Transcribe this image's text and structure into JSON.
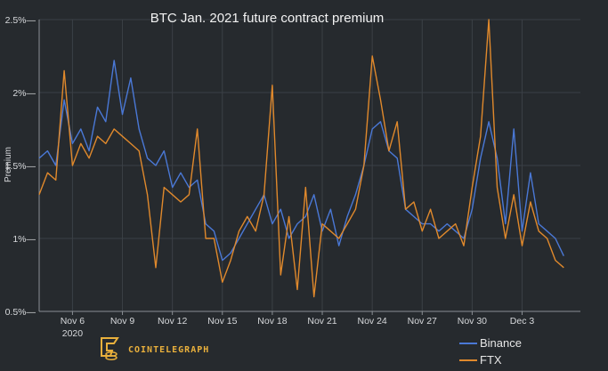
{
  "chart_data": {
    "type": "line",
    "title": "BTC Jan. 2021 future contract premium",
    "xlabel": "",
    "ylabel": "Premium",
    "x_range": [
      "2020-11-04",
      "2020-12-06"
    ],
    "ylim": [
      0.5,
      2.5
    ],
    "y_ticks": [
      0.5,
      1,
      1.5,
      2,
      2.5
    ],
    "y_tick_labels": [
      "0.5%",
      "1%",
      "1.5%",
      "2%",
      "2.5%"
    ],
    "x_ticks": [
      "2020-11-06",
      "2020-11-09",
      "2020-11-12",
      "2020-11-15",
      "2020-11-18",
      "2020-11-21",
      "2020-11-24",
      "2020-11-27",
      "2020-11-30",
      "2020-12-03"
    ],
    "x_tick_labels": [
      "Nov 6",
      "Nov 9",
      "Nov 12",
      "Nov 15",
      "Nov 18",
      "Nov 21",
      "Nov 24",
      "Nov 27",
      "Nov 30",
      "Dec 3"
    ],
    "x_year_label": "2020",
    "grid": true,
    "legend_position": "bottom-right",
    "series": [
      {
        "name": "Binance",
        "color": "#4a78d6",
        "points": [
          [
            "2020-11-04",
            1.55
          ],
          [
            "2020-11-04T12",
            1.6
          ],
          [
            "2020-11-05",
            1.5
          ],
          [
            "2020-11-05T12",
            1.95
          ],
          [
            "2020-11-06",
            1.65
          ],
          [
            "2020-11-06T12",
            1.75
          ],
          [
            "2020-11-07",
            1.6
          ],
          [
            "2020-11-07T12",
            1.9
          ],
          [
            "2020-11-08",
            1.8
          ],
          [
            "2020-11-08T12",
            2.22
          ],
          [
            "2020-11-09",
            1.85
          ],
          [
            "2020-11-09T12",
            2.1
          ],
          [
            "2020-11-10",
            1.75
          ],
          [
            "2020-11-10T12",
            1.55
          ],
          [
            "2020-11-11",
            1.5
          ],
          [
            "2020-11-11T12",
            1.6
          ],
          [
            "2020-11-12",
            1.35
          ],
          [
            "2020-11-12T12",
            1.45
          ],
          [
            "2020-11-13",
            1.35
          ],
          [
            "2020-11-13T12",
            1.4
          ],
          [
            "2020-11-14",
            1.1
          ],
          [
            "2020-11-14T12",
            1.05
          ],
          [
            "2020-11-15",
            0.85
          ],
          [
            "2020-11-15T12",
            0.9
          ],
          [
            "2020-11-16",
            1.0
          ],
          [
            "2020-11-16T12",
            1.1
          ],
          [
            "2020-11-17",
            1.2
          ],
          [
            "2020-11-17T12",
            1.3
          ],
          [
            "2020-11-18",
            1.1
          ],
          [
            "2020-11-18T12",
            1.2
          ],
          [
            "2020-11-19",
            1.0
          ],
          [
            "2020-11-19T12",
            1.1
          ],
          [
            "2020-11-20",
            1.15
          ],
          [
            "2020-11-20T12",
            1.3
          ],
          [
            "2020-11-21",
            1.05
          ],
          [
            "2020-11-21T12",
            1.2
          ],
          [
            "2020-11-22",
            0.95
          ],
          [
            "2020-11-22T12",
            1.15
          ],
          [
            "2020-11-23",
            1.3
          ],
          [
            "2020-11-23T12",
            1.5
          ],
          [
            "2020-11-24",
            1.75
          ],
          [
            "2020-11-24T12",
            1.8
          ],
          [
            "2020-11-25",
            1.6
          ],
          [
            "2020-11-25T12",
            1.55
          ],
          [
            "2020-11-26",
            1.2
          ],
          [
            "2020-11-26T12",
            1.15
          ],
          [
            "2020-11-27",
            1.1
          ],
          [
            "2020-11-27T12",
            1.1
          ],
          [
            "2020-11-28",
            1.05
          ],
          [
            "2020-11-28T12",
            1.1
          ],
          [
            "2020-11-29",
            1.05
          ],
          [
            "2020-11-29T12",
            1.0
          ],
          [
            "2020-11-30",
            1.2
          ],
          [
            "2020-11-30T12",
            1.55
          ],
          [
            "2020-12-01",
            1.8
          ],
          [
            "2020-12-01T12",
            1.55
          ],
          [
            "2020-12-02",
            1.1
          ],
          [
            "2020-12-02T12",
            1.75
          ],
          [
            "2020-12-03",
            1.05
          ],
          [
            "2020-12-03T12",
            1.45
          ],
          [
            "2020-12-04",
            1.1
          ],
          [
            "2020-12-04T12",
            1.05
          ],
          [
            "2020-12-05",
            1.0
          ],
          [
            "2020-12-05T12",
            0.88
          ]
        ]
      },
      {
        "name": "FTX",
        "color": "#e0892c",
        "points": [
          [
            "2020-11-04",
            1.3
          ],
          [
            "2020-11-04T12",
            1.45
          ],
          [
            "2020-11-05",
            1.4
          ],
          [
            "2020-11-05T12",
            2.15
          ],
          [
            "2020-11-06",
            1.5
          ],
          [
            "2020-11-06T12",
            1.65
          ],
          [
            "2020-11-07",
            1.55
          ],
          [
            "2020-11-07T12",
            1.7
          ],
          [
            "2020-11-08",
            1.65
          ],
          [
            "2020-11-08T12",
            1.75
          ],
          [
            "2020-11-09",
            1.7
          ],
          [
            "2020-11-09T12",
            1.65
          ],
          [
            "2020-11-10",
            1.6
          ],
          [
            "2020-11-10T12",
            1.3
          ],
          [
            "2020-11-11",
            0.8
          ],
          [
            "2020-11-11T12",
            1.35
          ],
          [
            "2020-11-12",
            1.3
          ],
          [
            "2020-11-12T12",
            1.25
          ],
          [
            "2020-11-13",
            1.3
          ],
          [
            "2020-11-13T12",
            1.75
          ],
          [
            "2020-11-14",
            1.0
          ],
          [
            "2020-11-14T12",
            1.0
          ],
          [
            "2020-11-15",
            0.7
          ],
          [
            "2020-11-15T12",
            0.85
          ],
          [
            "2020-11-16",
            1.05
          ],
          [
            "2020-11-16T12",
            1.15
          ],
          [
            "2020-11-17",
            1.05
          ],
          [
            "2020-11-17T12",
            1.3
          ],
          [
            "2020-11-18",
            2.05
          ],
          [
            "2020-11-18T12",
            0.75
          ],
          [
            "2020-11-19",
            1.15
          ],
          [
            "2020-11-19T12",
            0.65
          ],
          [
            "2020-11-20",
            1.35
          ],
          [
            "2020-11-20T12",
            0.6
          ],
          [
            "2020-11-21",
            1.1
          ],
          [
            "2020-11-21T12",
            1.05
          ],
          [
            "2020-11-22",
            1.0
          ],
          [
            "2020-11-22T12",
            1.1
          ],
          [
            "2020-11-23",
            1.2
          ],
          [
            "2020-11-23T12",
            1.5
          ],
          [
            "2020-11-24",
            2.25
          ],
          [
            "2020-11-24T12",
            1.95
          ],
          [
            "2020-11-25",
            1.6
          ],
          [
            "2020-11-25T12",
            1.8
          ],
          [
            "2020-11-26",
            1.2
          ],
          [
            "2020-11-26T12",
            1.25
          ],
          [
            "2020-11-27",
            1.05
          ],
          [
            "2020-11-27T12",
            1.2
          ],
          [
            "2020-11-28",
            1.0
          ],
          [
            "2020-11-28T12",
            1.05
          ],
          [
            "2020-11-29",
            1.1
          ],
          [
            "2020-11-29T12",
            0.95
          ],
          [
            "2020-11-30",
            1.35
          ],
          [
            "2020-11-30T12",
            1.7
          ],
          [
            "2020-12-01",
            2.5
          ],
          [
            "2020-12-01T12",
            1.35
          ],
          [
            "2020-12-02",
            1.0
          ],
          [
            "2020-12-02T12",
            1.3
          ],
          [
            "2020-12-03",
            0.95
          ],
          [
            "2020-12-03T12",
            1.25
          ],
          [
            "2020-12-04",
            1.05
          ],
          [
            "2020-12-04T12",
            1.0
          ],
          [
            "2020-12-05",
            0.85
          ],
          [
            "2020-12-05T12",
            0.8
          ]
        ]
      }
    ]
  },
  "brand": {
    "name": "COINTELEGRAPH",
    "icon": "cointelegraph-logo-icon",
    "color": "#e9b03c"
  },
  "colors": {
    "background": "#262a2e",
    "grid": "#3b4046"
  }
}
